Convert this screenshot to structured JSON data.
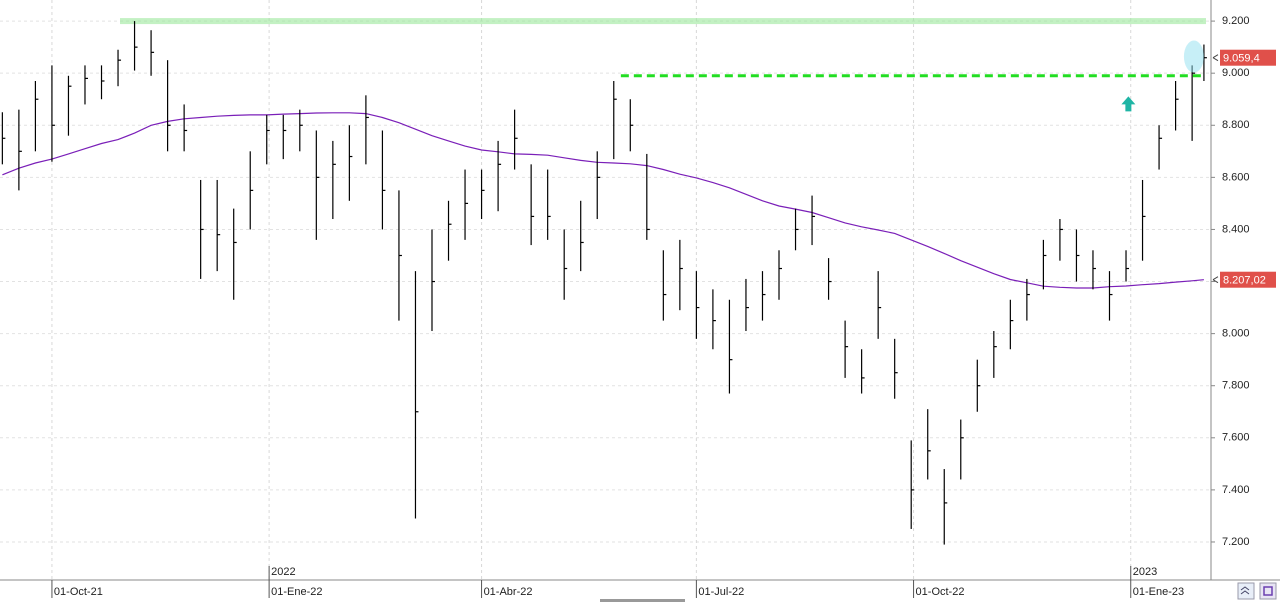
{
  "chart_data": {
    "type": "ohlc",
    "bar_color": "#000000",
    "x": [
      "2021-09-10",
      "2021-09-17",
      "2021-09-24",
      "2021-10-01",
      "2021-10-08",
      "2021-10-15",
      "2021-10-22",
      "2021-10-29",
      "2021-11-05",
      "2021-11-12",
      "2021-11-19",
      "2021-11-26",
      "2021-12-03",
      "2021-12-10",
      "2021-12-17",
      "2021-12-24",
      "2021-12-31",
      "2022-01-07",
      "2022-01-14",
      "2022-01-21",
      "2022-01-28",
      "2022-02-04",
      "2022-02-11",
      "2022-02-18",
      "2022-02-25",
      "2022-03-04",
      "2022-03-11",
      "2022-03-18",
      "2022-03-25",
      "2022-04-01",
      "2022-04-08",
      "2022-04-15",
      "2022-04-22",
      "2022-04-29",
      "2022-05-06",
      "2022-05-13",
      "2022-05-20",
      "2022-05-27",
      "2022-06-03",
      "2022-06-10",
      "2022-06-17",
      "2022-06-24",
      "2022-07-01",
      "2022-07-08",
      "2022-07-15",
      "2022-07-22",
      "2022-07-29",
      "2022-08-05",
      "2022-08-12",
      "2022-08-19",
      "2022-08-26",
      "2022-09-02",
      "2022-09-09",
      "2022-09-16",
      "2022-09-23",
      "2022-09-30",
      "2022-10-07",
      "2022-10-14",
      "2022-10-21",
      "2022-10-28",
      "2022-11-04",
      "2022-11-11",
      "2022-11-18",
      "2022-11-25",
      "2022-12-02",
      "2022-12-09",
      "2022-12-16",
      "2022-12-23",
      "2022-12-30",
      "2023-01-06",
      "2023-01-13",
      "2023-01-20",
      "2023-01-27",
      "2023-02-01"
    ],
    "high": [
      8850,
      8860,
      8970,
      9030,
      8990,
      9030,
      9030,
      9090,
      9200,
      9165,
      9050,
      8880,
      8590,
      8590,
      8480,
      8700,
      8840,
      8840,
      8860,
      8780,
      8740,
      8800,
      8915,
      8780,
      8550,
      8240,
      8400,
      8510,
      8630,
      8630,
      8740,
      8860,
      8650,
      8630,
      8400,
      8510,
      8700,
      8970,
      8900,
      8690,
      8320,
      8360,
      8240,
      8170,
      8130,
      8210,
      8240,
      8320,
      8480,
      8530,
      8290,
      8050,
      7940,
      8240,
      7980,
      7590,
      7710,
      7480,
      7670,
      7900,
      8010,
      8130,
      8210,
      8360,
      8440,
      8400,
      8320,
      8240,
      8320,
      8590,
      8800,
      8970,
      9030,
      9110
    ],
    "low": [
      8650,
      8550,
      8700,
      8660,
      8760,
      8880,
      8900,
      8950,
      9010,
      8990,
      8700,
      8700,
      8210,
      8240,
      8130,
      8400,
      8650,
      8670,
      8700,
      8360,
      8440,
      8510,
      8650,
      8400,
      8050,
      7290,
      8010,
      8280,
      8360,
      8440,
      8470,
      8630,
      8340,
      8360,
      8130,
      8240,
      8440,
      8670,
      8700,
      8360,
      8050,
      8090,
      7980,
      7940,
      7770,
      8010,
      8050,
      8130,
      8320,
      8340,
      8130,
      7830,
      7770,
      7980,
      7750,
      7250,
      7440,
      7190,
      7440,
      7700,
      7830,
      7940,
      8050,
      8170,
      8280,
      8200,
      8170,
      8050,
      8200,
      8280,
      8630,
      8780,
      8740,
      8970
    ],
    "close": [
      8750,
      8700,
      8900,
      8800,
      8950,
      8980,
      8970,
      9050,
      9100,
      9080,
      8800,
      8780,
      8400,
      8380,
      8350,
      8550,
      8780,
      8780,
      8800,
      8600,
      8650,
      8680,
      8830,
      8550,
      8300,
      7700,
      8200,
      8420,
      8500,
      8550,
      8650,
      8750,
      8450,
      8450,
      8250,
      8350,
      8600,
      8900,
      8800,
      8400,
      8150,
      8250,
      8100,
      8050,
      7900,
      8100,
      8150,
      8250,
      8400,
      8450,
      8200,
      7950,
      7830,
      8100,
      7850,
      7400,
      7550,
      7350,
      7600,
      7800,
      7950,
      8050,
      8150,
      8300,
      8400,
      8300,
      8250,
      8150,
      8250,
      8450,
      8750,
      8900,
      9000,
      9059.4
    ],
    "moving_average": {
      "color": "#7a1fb8",
      "values": [
        8610,
        8635,
        8655,
        8670,
        8690,
        8710,
        8730,
        8745,
        8770,
        8800,
        8815,
        8825,
        8830,
        8835,
        8838,
        8840,
        8840,
        8843,
        8845,
        8847,
        8848,
        8848,
        8845,
        8830,
        8810,
        8785,
        8760,
        8740,
        8720,
        8705,
        8698,
        8690,
        8688,
        8685,
        8675,
        8665,
        8658,
        8655,
        8652,
        8645,
        8630,
        8612,
        8598,
        8580,
        8560,
        8535,
        8510,
        8490,
        8478,
        8465,
        8445,
        8425,
        8410,
        8398,
        8385,
        8360,
        8335,
        8308,
        8280,
        8255,
        8230,
        8208,
        8195,
        8182,
        8178,
        8175,
        8175,
        8180,
        8183,
        8188,
        8192,
        8198,
        8203,
        8207.02
      ]
    },
    "xlim": [
      "2021-09-09",
      "2023-02-04"
    ],
    "xticks": [
      {
        "value": "2021-10-01",
        "label": "01-Oct-21"
      },
      {
        "value": "2022-01-01",
        "label": "01-Ene-22"
      },
      {
        "value": "2022-04-01",
        "label": "01-Abr-22"
      },
      {
        "value": "2022-07-01",
        "label": "01-Jul-22"
      },
      {
        "value": "2022-10-01",
        "label": "01-Oct-22"
      },
      {
        "value": "2023-01-01",
        "label": "01-Ene-23"
      }
    ],
    "year_labels": [
      {
        "value": "2022-01-01",
        "label": "2022"
      },
      {
        "value": "2023-01-01",
        "label": "2023"
      }
    ],
    "ylim": [
      7054,
      9281
    ],
    "yticks": [
      {
        "value": 7200,
        "label": "7.200"
      },
      {
        "value": 7400,
        "label": "7.400"
      },
      {
        "value": 7600,
        "label": "7.600"
      },
      {
        "value": 7800,
        "label": "7.800"
      },
      {
        "value": 8000,
        "label": "8.000"
      },
      {
        "value": 8200,
        "label": "8.200"
      },
      {
        "value": 8400,
        "label": "8.400"
      },
      {
        "value": 8600,
        "label": "8.600"
      },
      {
        "value": 8800,
        "label": "8.800"
      },
      {
        "value": 9000,
        "label": "9.000"
      },
      {
        "value": 9200,
        "label": "9.200"
      }
    ],
    "grid": true,
    "resistance_band": {
      "value": 9200,
      "color": "#9be89b"
    },
    "breakout_line": {
      "value": 8990,
      "start": "2022-05-30",
      "color": "#22dd22"
    },
    "arrow": {
      "x": "2022-12-31",
      "value": 8880,
      "color": "#1fb5a5"
    },
    "price_tags": [
      {
        "value": 9059.4,
        "label": "9.059,4",
        "color": "#e0504a"
      },
      {
        "value": 8207.02,
        "label": "8.207,02",
        "color": "#e0504a"
      }
    ]
  }
}
